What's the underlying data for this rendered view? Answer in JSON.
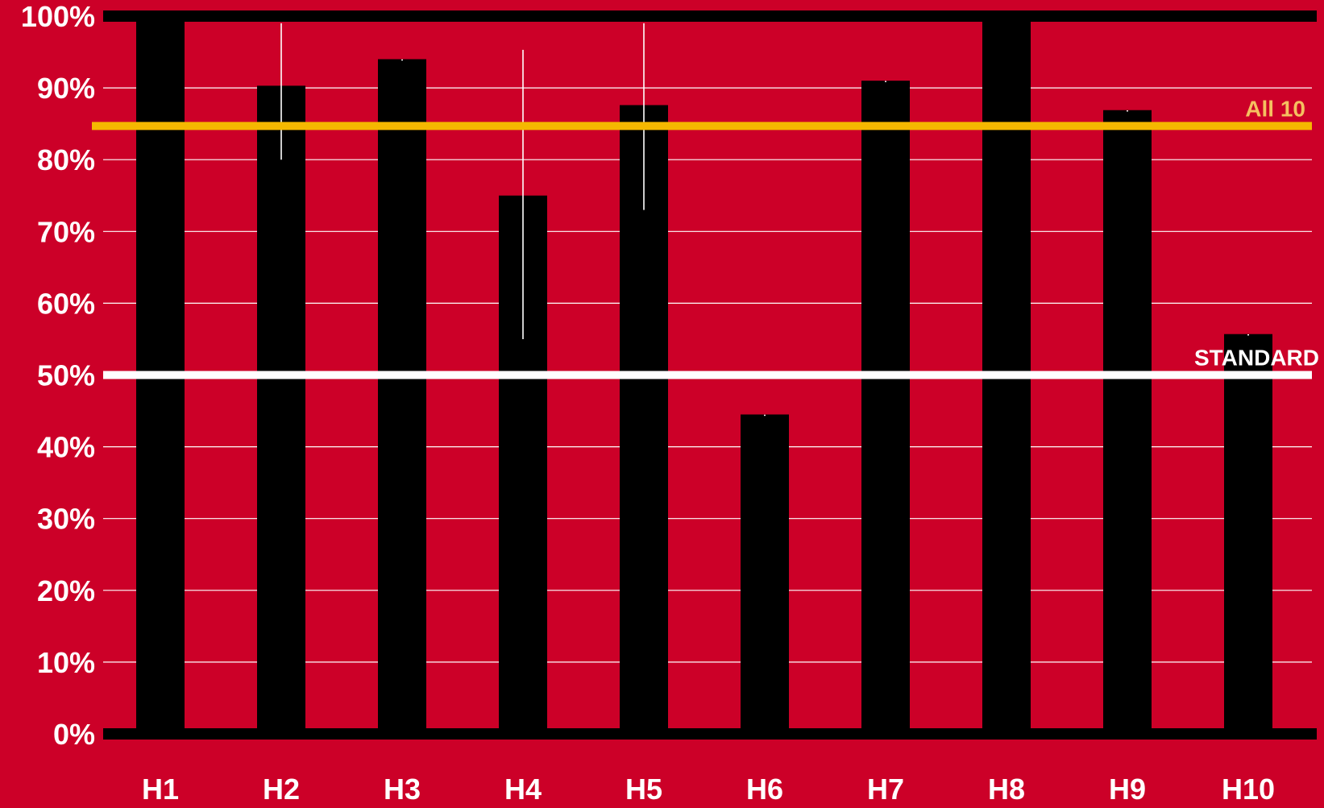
{
  "chart_data": {
    "type": "bar",
    "title": "",
    "xlabel": "",
    "ylabel": "",
    "categories": [
      "H1",
      "H2",
      "H3",
      "H4",
      "H5",
      "H6",
      "H7",
      "H8",
      "H9",
      "H10"
    ],
    "series": [
      {
        "values": [
          100,
          90.3,
          94,
          75,
          87.6,
          44.5,
          91,
          100,
          86.9,
          55.7
        ],
        "error_low": [
          100,
          80,
          94,
          55,
          73,
          44.5,
          91,
          100,
          86.9,
          55.7
        ],
        "error_high": [
          100,
          99,
          94,
          95.3,
          99,
          44.5,
          91,
          100,
          86.9,
          55.7
        ]
      }
    ],
    "ylim": [
      0,
      100
    ],
    "yticks": [
      0,
      10,
      20,
      30,
      40,
      50,
      60,
      70,
      80,
      90,
      100
    ],
    "ytick_labels": [
      "0%",
      "10%",
      "20%",
      "30%",
      "40%",
      "50%",
      "60%",
      "70%",
      "80%",
      "90%",
      "100%"
    ],
    "grid": true,
    "reference_lines": [
      {
        "label": "All 10",
        "value": 84.7,
        "color": "#f5b800",
        "label_color": "#f5c060"
      },
      {
        "label": "STANDARD",
        "value": 50,
        "color": "#ffffff",
        "label_color": "#ffffff"
      }
    ],
    "colors": {
      "background": "#cc0028",
      "bar": "#000000",
      "gridline": "#ffffff",
      "error_bar": "#ffffff",
      "text": "#ffffff"
    }
  }
}
